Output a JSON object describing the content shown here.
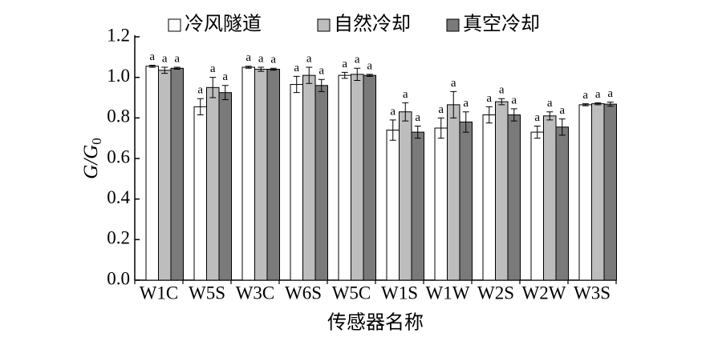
{
  "chart_data": {
    "type": "bar",
    "ylabel_main": "G/G",
    "ylabel_sub": "0",
    "xlabel": "传感器名称",
    "categories": [
      "W1C",
      "W5S",
      "W3C",
      "W6S",
      "W5C",
      "W1S",
      "W1W",
      "W2S",
      "W2W",
      "W3S"
    ],
    "series": [
      {
        "name": "冷风隧道",
        "color": "#ffffff",
        "values": [
          1.055,
          0.855,
          1.05,
          0.965,
          1.01,
          0.74,
          0.75,
          0.815,
          0.73,
          0.865
        ],
        "errors": [
          0.005,
          0.04,
          0.005,
          0.04,
          0.015,
          0.05,
          0.05,
          0.04,
          0.03,
          0.005
        ],
        "letters": [
          "a",
          "a",
          "a",
          "a",
          "a",
          "a",
          "a",
          "a",
          "a",
          "a"
        ]
      },
      {
        "name": "自然冷却",
        "color": "#bdbdbd",
        "values": [
          1.035,
          0.95,
          1.04,
          1.01,
          1.015,
          0.83,
          0.865,
          0.88,
          0.81,
          0.87
        ],
        "errors": [
          0.015,
          0.05,
          0.01,
          0.04,
          0.03,
          0.045,
          0.065,
          0.015,
          0.02,
          0.005
        ],
        "letters": [
          "a",
          "a",
          "a",
          "a",
          "a",
          "a",
          "a",
          "a",
          "a",
          "a"
        ]
      },
      {
        "name": "真空冷却",
        "color": "#7a7a7a",
        "values": [
          1.045,
          0.925,
          1.04,
          0.96,
          1.01,
          0.73,
          0.78,
          0.815,
          0.755,
          0.868
        ],
        "errors": [
          0.005,
          0.035,
          0.005,
          0.03,
          0.005,
          0.03,
          0.05,
          0.03,
          0.04,
          0.01
        ],
        "letters": [
          "a",
          "a",
          "a",
          "a",
          "a",
          "a",
          "a",
          "a",
          "a",
          "a"
        ]
      }
    ],
    "ylim": [
      0,
      1.2
    ],
    "yticks": [
      {
        "value": 0,
        "label": "0.0"
      },
      0.2,
      0.4,
      0.6,
      0.8,
      {
        "value": 1,
        "label": "1.0"
      },
      1.2
    ],
    "legend": "top"
  }
}
